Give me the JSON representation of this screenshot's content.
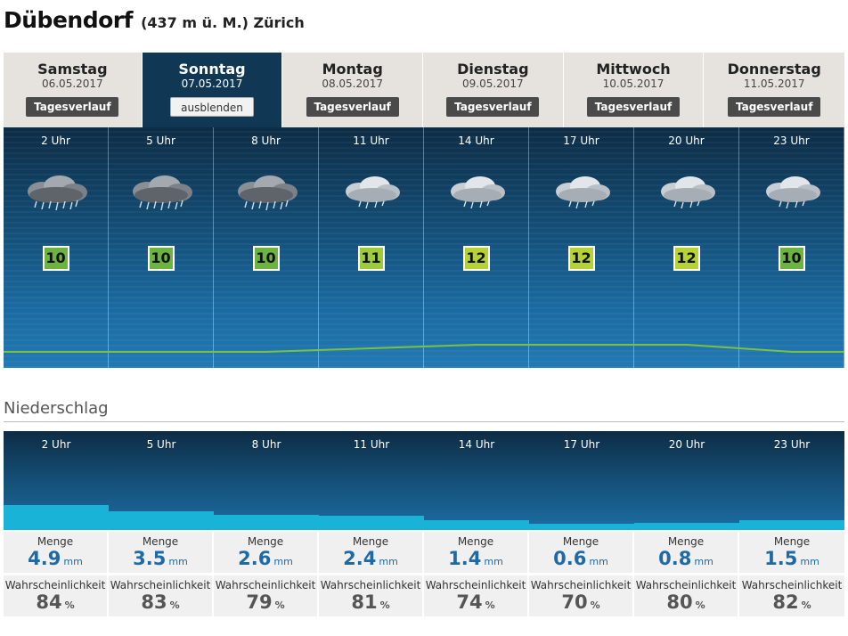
{
  "location": {
    "city": "Dübendorf",
    "meta": "(437 m ü. M.) Zürich"
  },
  "days": [
    {
      "name": "Samstag",
      "date": "06.05.2017",
      "button": "Tagesverlauf",
      "active": false
    },
    {
      "name": "Sonntag",
      "date": "07.05.2017",
      "button": "ausblenden",
      "active": true
    },
    {
      "name": "Montag",
      "date": "08.05.2017",
      "button": "Tagesverlauf",
      "active": false
    },
    {
      "name": "Dienstag",
      "date": "09.05.2017",
      "button": "Tagesverlauf",
      "active": false
    },
    {
      "name": "Mittwoch",
      "date": "10.05.2017",
      "button": "Tagesverlauf",
      "active": false
    },
    {
      "name": "Donnerstag",
      "date": "11.05.2017",
      "button": "Tagesverlauf",
      "active": false
    }
  ],
  "forecast": [
    {
      "time": "2 Uhr",
      "temp": "10",
      "icon": "heavy-rain-cloud-icon"
    },
    {
      "time": "5 Uhr",
      "temp": "10",
      "icon": "heavy-rain-cloud-icon"
    },
    {
      "time": "8 Uhr",
      "temp": "10",
      "icon": "heavy-rain-cloud-icon"
    },
    {
      "time": "11 Uhr",
      "temp": "11",
      "icon": "light-rain-cloud-icon"
    },
    {
      "time": "14 Uhr",
      "temp": "12",
      "icon": "light-rain-cloud-icon"
    },
    {
      "time": "17 Uhr",
      "temp": "12",
      "icon": "light-rain-cloud-icon"
    },
    {
      "time": "20 Uhr",
      "temp": "12",
      "icon": "light-rain-cloud-icon"
    },
    {
      "time": "23 Uhr",
      "temp": "10",
      "icon": "light-rain-cloud-icon"
    }
  ],
  "colors": {
    "temp_10": "#6db33f",
    "temp_11": "#9ccc3a",
    "temp_12": "#b5d334",
    "rain_bar": "#19b3d7",
    "curve": "#7ac143"
  },
  "precip_section_title": "Niederschlag",
  "precip": [
    {
      "time": "2 Uhr",
      "amount_label": "Menge",
      "amount": "4.9",
      "amount_unit": "mm",
      "prob_label": "Wahrscheinlichkeit",
      "prob": "84",
      "prob_unit": "%"
    },
    {
      "time": "5 Uhr",
      "amount_label": "Menge",
      "amount": "3.5",
      "amount_unit": "mm",
      "prob_label": "Wahrscheinlichkeit",
      "prob": "83",
      "prob_unit": "%"
    },
    {
      "time": "8 Uhr",
      "amount_label": "Menge",
      "amount": "2.6",
      "amount_unit": "mm",
      "prob_label": "Wahrscheinlichkeit",
      "prob": "79",
      "prob_unit": "%"
    },
    {
      "time": "11 Uhr",
      "amount_label": "Menge",
      "amount": "2.4",
      "amount_unit": "mm",
      "prob_label": "Wahrscheinlichkeit",
      "prob": "81",
      "prob_unit": "%"
    },
    {
      "time": "14 Uhr",
      "amount_label": "Menge",
      "amount": "1.4",
      "amount_unit": "mm",
      "prob_label": "Wahrscheinlichkeit",
      "prob": "74",
      "prob_unit": "%"
    },
    {
      "time": "17 Uhr",
      "amount_label": "Menge",
      "amount": "0.6",
      "amount_unit": "mm",
      "prob_label": "Wahrscheinlichkeit",
      "prob": "70",
      "prob_unit": "%"
    },
    {
      "time": "20 Uhr",
      "amount_label": "Menge",
      "amount": "0.8",
      "amount_unit": "mm",
      "prob_label": "Wahrscheinlichkeit",
      "prob": "80",
      "prob_unit": "%"
    },
    {
      "time": "23 Uhr",
      "amount_label": "Menge",
      "amount": "1.5",
      "amount_unit": "mm",
      "prob_label": "Wahrscheinlichkeit",
      "prob": "82",
      "prob_unit": "%"
    }
  ]
}
